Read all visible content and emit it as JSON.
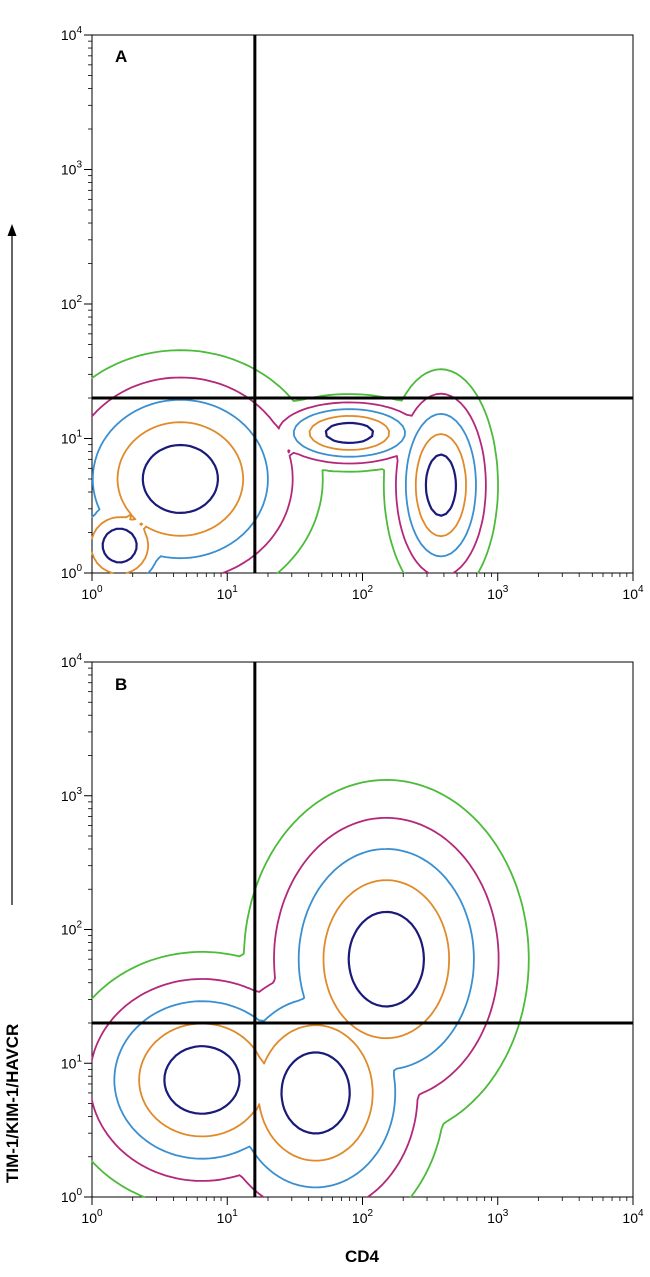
{
  "chart_data": {
    "type": "contour",
    "xlabel": "CD4",
    "ylabel": "TIM-1/KIM-1/HAVCR",
    "x_scale": "log",
    "y_scale": "log",
    "xlim": [
      1,
      10000
    ],
    "ylim": [
      1,
      10000
    ],
    "x_ticks": [
      {
        "base": "10",
        "exp": "0"
      },
      {
        "base": "10",
        "exp": "1"
      },
      {
        "base": "10",
        "exp": "2"
      },
      {
        "base": "10",
        "exp": "3"
      },
      {
        "base": "10",
        "exp": "4"
      }
    ],
    "y_ticks": [
      {
        "base": "10",
        "exp": "0"
      },
      {
        "base": "10",
        "exp": "1"
      },
      {
        "base": "10",
        "exp": "2"
      },
      {
        "base": "10",
        "exp": "3"
      },
      {
        "base": "10",
        "exp": "4"
      }
    ],
    "colors": {
      "level1": "#4cbb3a",
      "level2": "#b3287a",
      "level3": "#3a8fd0",
      "level4": "#e08a2a",
      "level5": "#1a1a7a",
      "gate": "#000000"
    },
    "panels": [
      {
        "label": "A",
        "gate": {
          "x": 16,
          "y": 20
        },
        "populations": [
          {
            "center": [
              4.5,
              5.0
            ],
            "spread": [
              0.55,
              0.5
            ]
          },
          {
            "center": [
              1.6,
              1.6
            ],
            "spread": [
              0.25,
              0.25
            ]
          },
          {
            "center": [
              80,
              11
            ],
            "spread": [
              0.35,
              0.15
            ]
          },
          {
            "center": [
              380,
              4.5
            ],
            "spread": [
              0.22,
              0.45
            ]
          }
        ]
      },
      {
        "label": "B",
        "gate": {
          "x": 16,
          "y": 20
        },
        "populations": [
          {
            "center": [
              6.5,
              7.5
            ],
            "spread": [
              0.55,
              0.5
            ]
          },
          {
            "center": [
              45,
              6.0
            ],
            "spread": [
              0.5,
              0.6
            ]
          },
          {
            "center": [
              150,
              60
            ],
            "spread": [
              0.55,
              0.7
            ]
          }
        ]
      }
    ]
  }
}
